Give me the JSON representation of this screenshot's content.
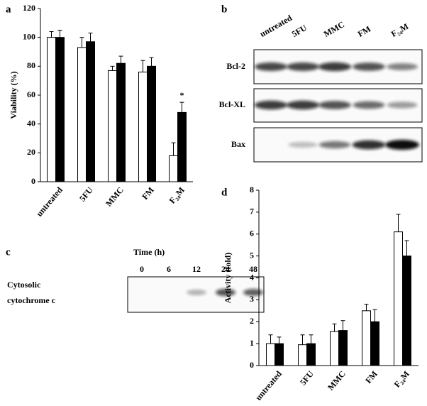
{
  "chart_data": [
    {
      "type": "bar",
      "panel": "a",
      "ylabel": "Viability (%)",
      "categories": [
        "untreated",
        "5FU",
        "MMC",
        "FM",
        "F₂₄M"
      ],
      "series": [
        {
          "color": "#ffffff",
          "values": [
            100,
            93,
            77,
            76,
            18
          ],
          "errors": [
            4,
            7,
            3,
            8,
            9
          ]
        },
        {
          "color": "#000000",
          "values": [
            100,
            97,
            82,
            80,
            48
          ],
          "errors": [
            5,
            6,
            5,
            6,
            7
          ]
        }
      ],
      "ylim": [
        0,
        120
      ],
      "yticks": [
        0,
        20,
        40,
        60,
        80,
        100,
        120
      ],
      "grid": false,
      "annotation": "*"
    },
    {
      "type": "bar",
      "panel": "d",
      "ylabel": "Activity (fold)",
      "categories": [
        "untreated",
        "5FU",
        "MMC",
        "FM",
        "F₂₄M"
      ],
      "series": [
        {
          "color": "#ffffff",
          "values": [
            1.0,
            0.95,
            1.55,
            2.5,
            6.1
          ],
          "errors": [
            0.4,
            0.45,
            0.35,
            0.3,
            0.8
          ]
        },
        {
          "color": "#000000",
          "values": [
            1.0,
            1.0,
            1.6,
            2.0,
            5.0
          ],
          "errors": [
            0.3,
            0.4,
            0.45,
            0.55,
            0.7
          ]
        }
      ],
      "ylim": [
        0,
        8
      ],
      "yticks": [
        0,
        1,
        2,
        3,
        4,
        5,
        6,
        7,
        8
      ],
      "grid": false
    }
  ],
  "blots": {
    "b": {
      "panel": "b",
      "lanes": [
        "untreated",
        "5FU",
        "MMC",
        "FM",
        "F₂₄M"
      ],
      "rows": [
        "Bcl-2",
        "Bcl-XL",
        "Bax"
      ]
    },
    "c": {
      "panel": "c",
      "title": "Time (h)",
      "lanes": [
        "0",
        "6",
        "12",
        "24",
        "48"
      ],
      "label": [
        "Cytosolic",
        "cytochrome c"
      ]
    }
  }
}
